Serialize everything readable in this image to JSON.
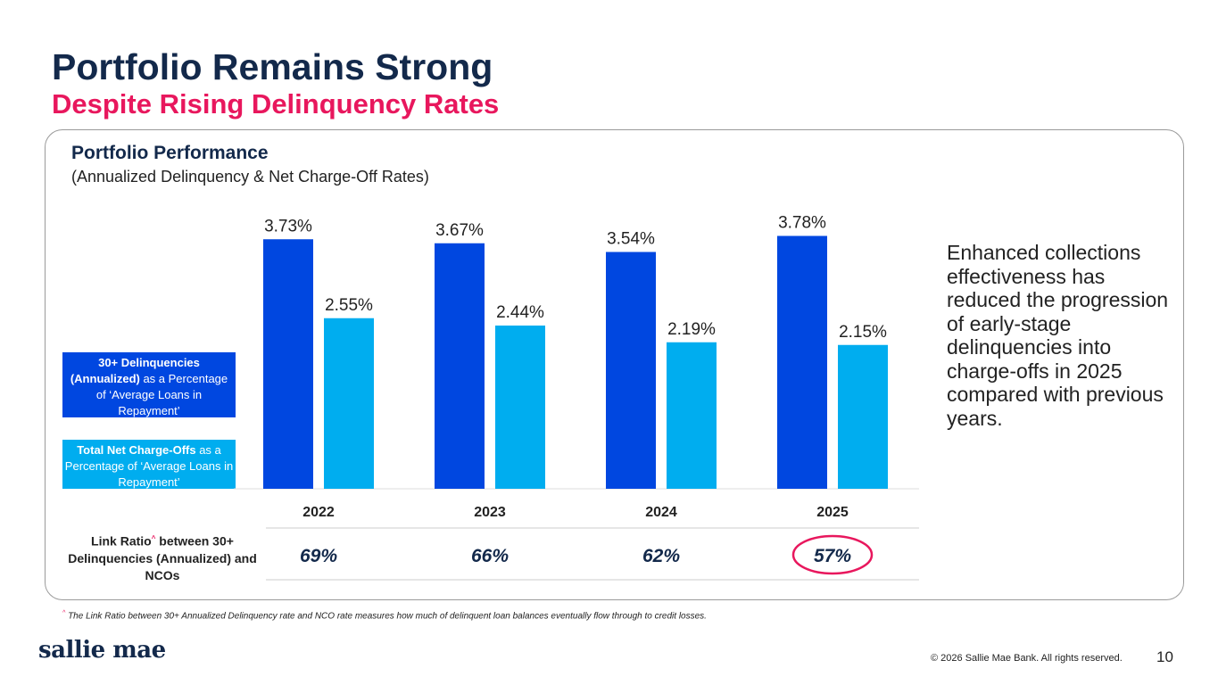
{
  "title": "Portfolio Remains Strong",
  "subtitle": "Despite Rising Delinquency Rates",
  "card": {
    "title": "Portfolio Performance",
    "subtitle": "(Annualized Delinquency & Net Charge-Off Rates)"
  },
  "legend": {
    "dlq_bold": "30+ Delinquencies (Annualized)",
    "dlq_rest": " as a Percentage of ‘Average Loans in Repayment’",
    "nco_bold": "Total Net Charge-Offs",
    "nco_rest": " as a Percentage of ‘Average Loans in Repayment’"
  },
  "link_ratio": {
    "label_a": "Link Ratio",
    "marker": "^",
    "label_b": " between 30+ Delinquencies (Annualized) and NCOs",
    "values": [
      "69%",
      "66%",
      "62%",
      "57%"
    ],
    "highlighted": "2025"
  },
  "side_text": "Enhanced collections effectiveness has reduced the progression of early-stage delinquencies into charge-offs in 2025 compared with previous years.",
  "footnote": {
    "marker": "^",
    "text": " The Link Ratio between 30+ Annualized Delinquency rate and NCO rate measures how much of delinquent loan balances eventually flow through to credit losses."
  },
  "logo": "sallie mae",
  "copyright": "© 2026 Sallie Mae Bank. All rights reserved.",
  "page_number": "10",
  "colors": {
    "navy": "#13294b",
    "pink": "#e8175d",
    "delinquency": "#0047e0",
    "nco": "#00adef"
  },
  "chart_data": {
    "type": "bar",
    "categories": [
      "2022",
      "2023",
      "2024",
      "2025"
    ],
    "series": [
      {
        "name": "30+ Delinquencies (Annualized)",
        "values": [
          3.73,
          3.67,
          3.54,
          3.78
        ],
        "labels": [
          "3.73%",
          "3.67%",
          "3.54%",
          "3.78%"
        ]
      },
      {
        "name": "Total Net Charge-Offs",
        "values": [
          2.55,
          2.44,
          2.19,
          2.15
        ],
        "labels": [
          "2.55%",
          "2.44%",
          "2.19%",
          "2.15%"
        ]
      }
    ],
    "ylim": [
      0,
      3.78
    ],
    "grid": false,
    "legend": "left"
  }
}
